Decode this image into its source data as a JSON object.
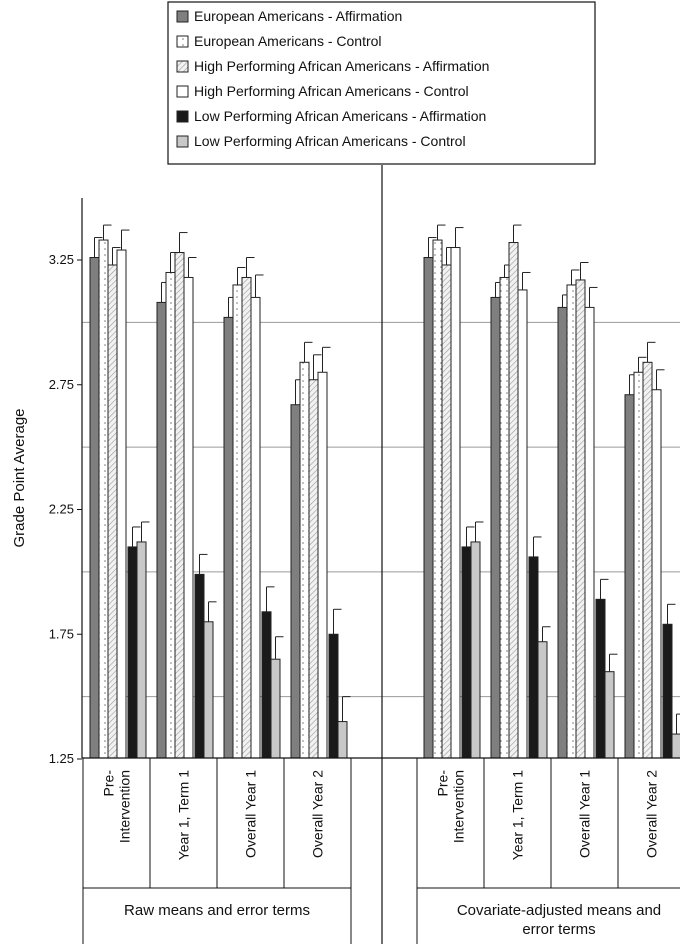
{
  "chart_data": {
    "type": "bar",
    "ylabel": "Grade Point Average",
    "ylim": [
      1.25,
      3.55
    ],
    "yticks": [
      "1.25",
      "1.75",
      "2.25",
      "2.75",
      "3.25"
    ],
    "grid": true,
    "legend_position": "top-center",
    "categories": [
      "Pre-\nIntervention",
      "Year 1, Term 1",
      "Overall Year 1",
      "Overall Year 2"
    ],
    "series_names": [
      "European Americans - Affirmation",
      "European Americans - Control",
      "High Performing African Americans - Affirmation",
      "High Performing African Americans - Control",
      "Low Performing African Americans - Affirmation",
      "Low Performing African Americans - Control"
    ],
    "series_colors": [
      "#7f7f7f",
      "#ffffff",
      "#e6e6e6",
      "#ffffff",
      "#1a1a1a",
      "#c8c8c8"
    ],
    "panels": [
      {
        "label": "Raw means and error terms",
        "series": [
          {
            "values": [
              3.26,
              3.08,
              3.02,
              2.67
            ],
            "errors": [
              0.08,
              0.08,
              0.08,
              0.1
            ]
          },
          {
            "values": [
              3.33,
              3.2,
              3.15,
              2.84
            ],
            "errors": [
              0.06,
              0.08,
              0.07,
              0.08
            ]
          },
          {
            "values": [
              3.23,
              3.28,
              3.18,
              2.77
            ],
            "errors": [
              0.07,
              0.08,
              0.08,
              0.1
            ]
          },
          {
            "values": [
              3.29,
              3.18,
              3.1,
              2.8
            ],
            "errors": [
              0.08,
              0.08,
              0.09,
              0.1
            ]
          },
          {
            "values": [
              2.1,
              1.99,
              1.84,
              1.75
            ],
            "errors": [
              0.08,
              0.08,
              0.1,
              0.1
            ]
          },
          {
            "values": [
              2.12,
              1.8,
              1.65,
              1.4
            ],
            "errors": [
              0.08,
              0.08,
              0.09,
              0.1
            ]
          }
        ]
      },
      {
        "label": "Covariate-adjusted means and\nerror terms",
        "series": [
          {
            "values": [
              3.26,
              3.1,
              3.06,
              2.71
            ],
            "errors": [
              0.08,
              0.06,
              0.05,
              0.08
            ]
          },
          {
            "values": [
              3.33,
              3.18,
              3.15,
              2.8
            ],
            "errors": [
              0.06,
              0.05,
              0.06,
              0.06
            ]
          },
          {
            "values": [
              3.23,
              3.32,
              3.17,
              2.84
            ],
            "errors": [
              0.07,
              0.07,
              0.07,
              0.08
            ]
          },
          {
            "values": [
              3.3,
              3.13,
              3.06,
              2.73
            ],
            "errors": [
              0.08,
              0.07,
              0.08,
              0.08
            ]
          },
          {
            "values": [
              2.1,
              2.06,
              1.89,
              1.79
            ],
            "errors": [
              0.08,
              0.08,
              0.08,
              0.08
            ]
          },
          {
            "values": [
              2.12,
              1.72,
              1.6,
              1.35
            ],
            "errors": [
              0.08,
              0.06,
              0.07,
              0.08
            ]
          }
        ]
      }
    ]
  }
}
